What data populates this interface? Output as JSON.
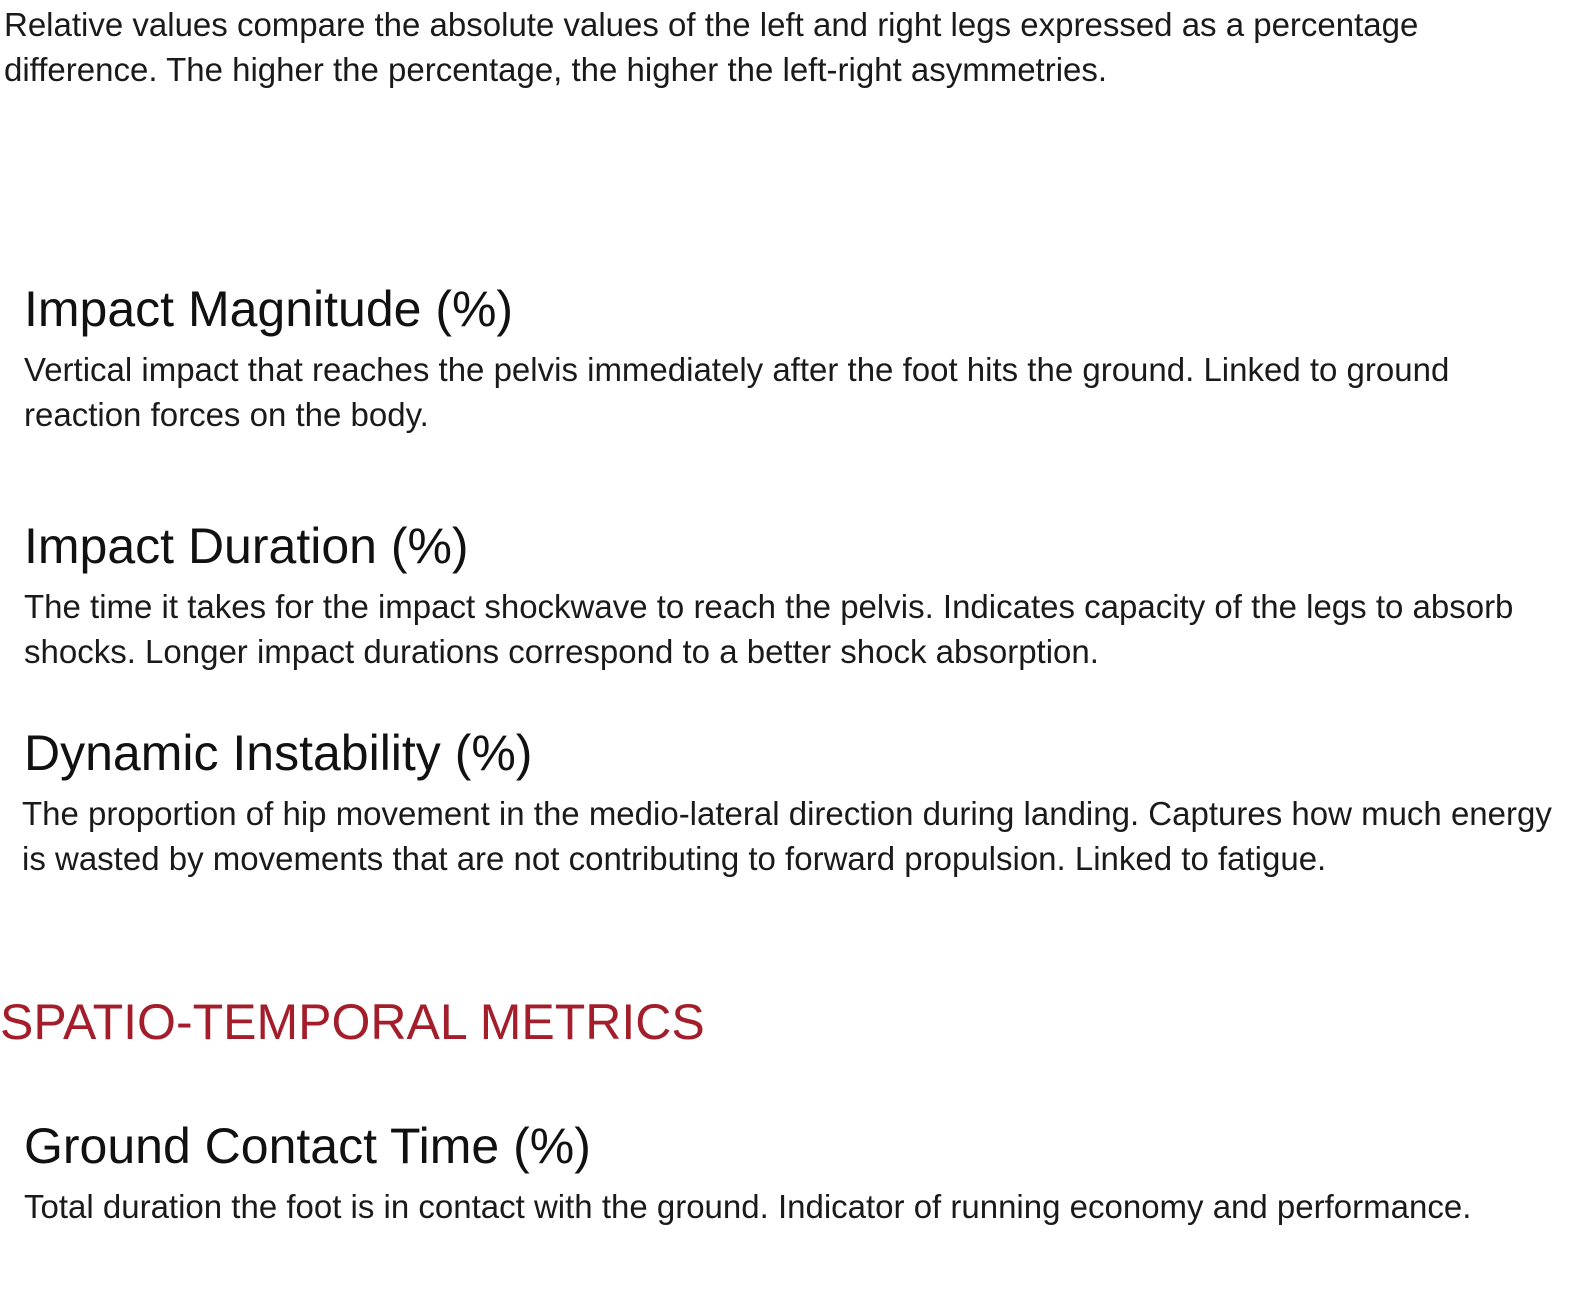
{
  "intro": {
    "text": "Relative values compare the absolute values of the left and right legs expressed as a percentage difference. The higher the percentage, the higher the left-right asymmetries."
  },
  "metrics": [
    {
      "title": "Impact Magnitude (%)",
      "description": "Vertical impact that reaches the pelvis immediately after the foot hits the ground. Linked to ground reaction forces on the body."
    },
    {
      "title": "Impact Duration (%)",
      "description": "The time it takes for the impact shockwave to reach the pelvis. Indicates capacity of the legs to absorb shocks. Longer impact durations correspond to a better shock absorption."
    },
    {
      "title": "Dynamic Instability (%)",
      "description": "The proportion of hip movement in the medio-lateral direction during landing. Captures how much energy is wasted by movements that are not contributing to forward propulsion. Linked to fatigue."
    }
  ],
  "spatio_temporal": {
    "section_title": "SPATIO-TEMPORAL METRICS",
    "color": "#a31e2a",
    "metrics": [
      {
        "title": "Ground Contact Time (%)",
        "description": "Total duration the foot is in contact with the ground. Indicator of running economy and performance."
      }
    ]
  }
}
